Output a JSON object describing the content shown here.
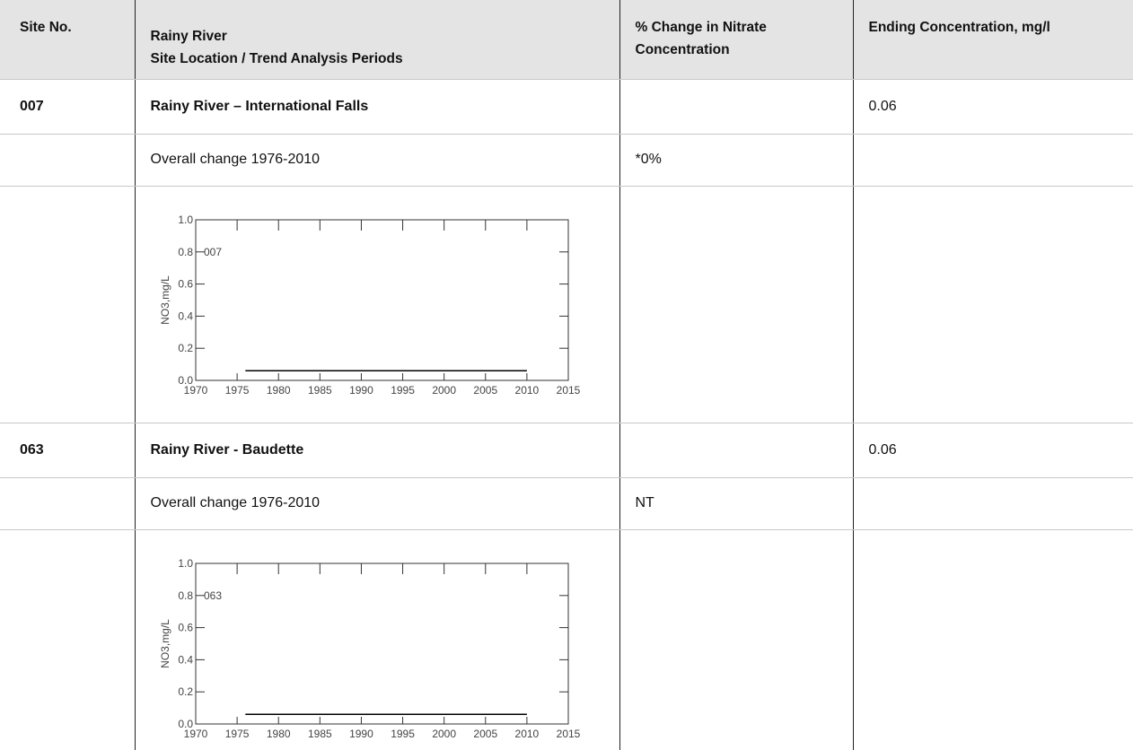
{
  "table": {
    "header": {
      "site_no": "Site No.",
      "location": [
        "Rainy River",
        "Site Location / Trend Analysis Periods"
      ],
      "change": "% Change in Nitrate Concentration",
      "ending": "Ending Concentration, mg/l"
    },
    "sites": [
      {
        "site_no": "007",
        "location": "Rainy River – International Falls",
        "ending": "0.06",
        "period": "Overall change 1976-2010",
        "change": "*0%"
      },
      {
        "site_no": "063",
        "location": "Rainy River - Baudette",
        "ending": "0.06",
        "period": "Overall change 1976-2010",
        "change": "NT"
      }
    ]
  },
  "chart_data": [
    {
      "type": "line",
      "annotation": "007",
      "ylabel": "NO3,mg/L",
      "color": "#000000",
      "x": [
        1976,
        2010
      ],
      "values": [
        0.06,
        0.06
      ],
      "xlim": [
        1970,
        2015
      ],
      "xticks": [
        1970,
        1975,
        1980,
        1985,
        1990,
        1995,
        2000,
        2005,
        2010,
        2015
      ],
      "ylim": [
        0,
        1
      ],
      "yticks": [
        {
          "value": 0,
          "label": "0.0"
        },
        0.2,
        0.4,
        0.6,
        0.8,
        {
          "value": 1,
          "label": "1.0"
        }
      ]
    },
    {
      "type": "line",
      "annotation": "063",
      "ylabel": "NO3,mg/L",
      "color": "#000000",
      "x": [
        1976,
        2010
      ],
      "values": [
        0.06,
        0.06
      ],
      "xlim": [
        1970,
        2015
      ],
      "xticks": [
        1970,
        1975,
        1980,
        1985,
        1990,
        1995,
        2000,
        2005,
        2010,
        2015
      ],
      "ylim": [
        0,
        1
      ],
      "yticks": [
        {
          "value": 0,
          "label": "0.0"
        },
        0.2,
        0.4,
        0.6,
        0.8,
        {
          "value": 1,
          "label": "1.0"
        }
      ]
    }
  ]
}
